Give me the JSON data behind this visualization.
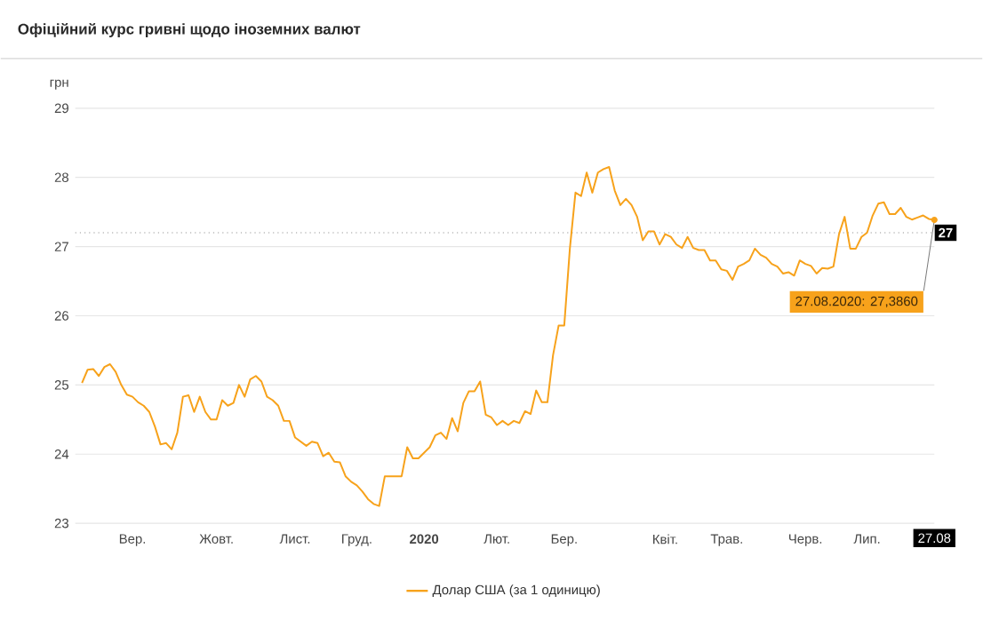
{
  "chart_data": {
    "type": "line",
    "title": "Офіційний курс гривні щодо іноземних валют",
    "ylabel": "грн",
    "categories": [
      null,
      null,
      null,
      null,
      null,
      null,
      null,
      null,
      null,
      "Вер.",
      null,
      null,
      null,
      null,
      null,
      null,
      null,
      null,
      null,
      null,
      null,
      null,
      null,
      null,
      "Жовт.",
      null,
      null,
      null,
      null,
      null,
      null,
      null,
      null,
      null,
      null,
      null,
      null,
      null,
      "Лист.",
      null,
      null,
      null,
      null,
      null,
      null,
      null,
      null,
      null,
      null,
      "Груд.",
      null,
      null,
      null,
      null,
      null,
      null,
      null,
      null,
      null,
      null,
      null,
      "**2020**",
      null,
      null,
      null,
      null,
      null,
      null,
      null,
      null,
      null,
      null,
      null,
      null,
      "Лют.",
      null,
      null,
      null,
      null,
      null,
      null,
      null,
      null,
      null,
      null,
      null,
      "Бер.",
      null,
      null,
      null,
      null,
      null,
      null,
      null,
      null,
      null,
      null,
      null,
      null,
      null,
      null,
      null,
      null,
      null,
      "Квіт.",
      null,
      null,
      null,
      null,
      null,
      null,
      null,
      null,
      null,
      null,
      "Трав.",
      null,
      null,
      null,
      null,
      null,
      null,
      null,
      null,
      null,
      null,
      null,
      null,
      null,
      "Черв.",
      null,
      null,
      null,
      null,
      null,
      null,
      null,
      null,
      null,
      null,
      "Лип.",
      null,
      null,
      null,
      null,
      null,
      null,
      null,
      null,
      null,
      null,
      null,
      "27.08"
    ],
    "series": [
      {
        "name": "Долар США (за 1 одиницю)",
        "color": "#f7a21b",
        "values": [
          25.03,
          25.22,
          25.23,
          25.13,
          25.26,
          25.3,
          25.19,
          25.0,
          24.86,
          24.83,
          24.75,
          24.7,
          24.61,
          24.4,
          24.14,
          24.16,
          24.07,
          24.31,
          24.83,
          24.85,
          24.61,
          24.83,
          24.61,
          24.5,
          24.5,
          24.78,
          24.7,
          24.74,
          25.0,
          24.83,
          25.08,
          25.13,
          25.05,
          24.83,
          24.78,
          24.7,
          24.48,
          24.48,
          24.24,
          24.18,
          24.12,
          24.18,
          24.16,
          23.97,
          24.02,
          23.89,
          23.88,
          23.68,
          23.6,
          23.55,
          23.46,
          23.35,
          23.28,
          23.25,
          23.68,
          23.68,
          23.68,
          23.68,
          24.1,
          23.94,
          23.94,
          24.02,
          24.1,
          24.27,
          24.31,
          24.22,
          24.52,
          24.33,
          24.74,
          24.91,
          24.91,
          25.05,
          24.57,
          24.53,
          24.42,
          24.48,
          24.42,
          24.48,
          24.45,
          24.62,
          24.58,
          24.92,
          24.75,
          24.75,
          25.43,
          25.86,
          25.86,
          26.97,
          27.78,
          27.73,
          28.07,
          27.78,
          28.07,
          28.12,
          28.15,
          27.81,
          27.6,
          27.69,
          27.6,
          27.43,
          27.09,
          27.22,
          27.22,
          27.03,
          27.18,
          27.14,
          27.03,
          26.98,
          27.14,
          26.98,
          26.95,
          26.95,
          26.8,
          26.8,
          26.67,
          26.65,
          26.52,
          26.71,
          26.75,
          26.8,
          26.97,
          26.88,
          26.84,
          26.75,
          26.71,
          26.61,
          26.63,
          26.58,
          26.8,
          26.75,
          26.72,
          26.61,
          26.69,
          26.68,
          26.71,
          27.18,
          27.43,
          26.97,
          26.97,
          27.14,
          27.2,
          27.45,
          27.62,
          27.64,
          27.47,
          27.47,
          27.56,
          27.43,
          27.39,
          27.42,
          27.45,
          27.4,
          27.386
        ]
      }
    ],
    "ylim": [
      23,
      29
    ],
    "yticks": [
      23,
      24,
      25,
      26,
      27,
      28,
      29
    ],
    "grid": "y",
    "legend": "bottom",
    "ref_lines": [
      {
        "axis": "y",
        "value": 27.2,
        "label": "27",
        "line_style": "dotted"
      }
    ],
    "annotations": [
      {
        "text": "27.08.2020: 27,3860",
        "x": "27.08",
        "y": 27.386
      }
    ]
  }
}
